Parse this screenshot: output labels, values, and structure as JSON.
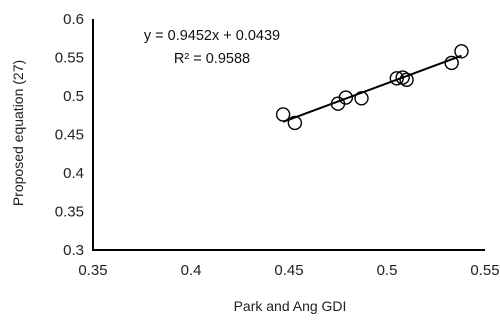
{
  "chart_data": {
    "type": "scatter",
    "xlabel": "Park and Ang GDI",
    "ylabel": "Proposed equation (27)",
    "xlim": [
      0.35,
      0.55
    ],
    "ylim": [
      0.3,
      0.6
    ],
    "xticks": [
      "0.35",
      "0.4",
      "0.45",
      "0.5",
      "0.55"
    ],
    "yticks": [
      "0.3",
      "0.35",
      "0.4",
      "0.45",
      "0.5",
      "0.55",
      "0.6"
    ],
    "grid": false,
    "points": [
      {
        "x": 0.447,
        "y": 0.476
      },
      {
        "x": 0.453,
        "y": 0.465
      },
      {
        "x": 0.475,
        "y": 0.49
      },
      {
        "x": 0.479,
        "y": 0.498
      },
      {
        "x": 0.487,
        "y": 0.497
      },
      {
        "x": 0.505,
        "y": 0.523
      },
      {
        "x": 0.508,
        "y": 0.524
      },
      {
        "x": 0.51,
        "y": 0.521
      },
      {
        "x": 0.533,
        "y": 0.543
      },
      {
        "x": 0.538,
        "y": 0.558
      }
    ],
    "trendline": {
      "slope": 0.9452,
      "intercept": 0.0439,
      "x_range": [
        0.447,
        0.538
      ]
    },
    "annotations": {
      "equation": "y = 0.9452x + 0.0439",
      "r_squared": "R² = 0.9588"
    },
    "marker_color": "#000000",
    "line_color": "#000000"
  }
}
